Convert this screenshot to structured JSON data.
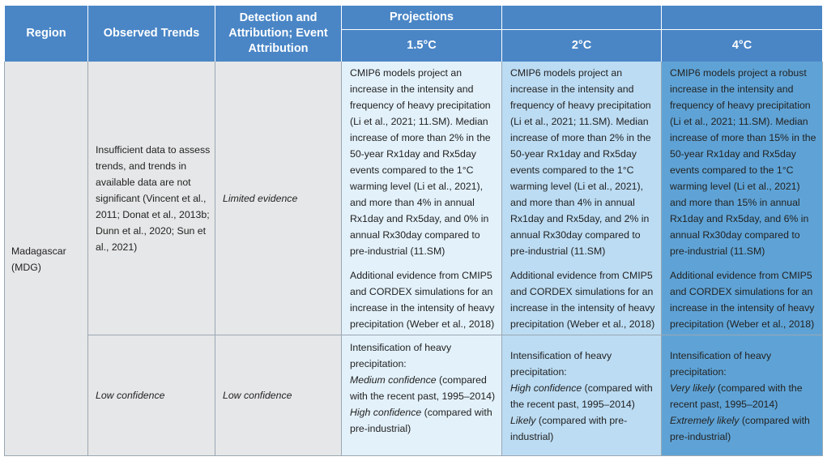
{
  "header": {
    "region": "Region",
    "observed": "Observed Trends",
    "detection": "Detection and Attribution; Event Attribution",
    "projections": "Projections",
    "t15": "1.5°C",
    "t2": "2°C",
    "t4": "4°C"
  },
  "region": "Madagascar (MDG)",
  "row1": {
    "observed": "Insufficient data to assess trends, and trends in available data are not significant (Vincent et al., 2011; Donat et al., 2013b; Dunn et al., 2020; Sun et al., 2021)",
    "detection": "Limited evidence",
    "p15_a": "CMIP6 models project an increase in the intensity and frequency of heavy precipitation (Li et al., 2021; 11.SM). Median increase of more than 2% in the 50-year Rx1day and Rx5day events compared to the 1°C warming level (Li et al., 2021), and more than 4% in annual Rx1day and Rx5day, and 0% in annual Rx30day compared to pre-industrial (11.SM)",
    "p15_b": "Additional evidence from CMIP5 and CORDEX simulations for an increase in the intensity of heavy precipitation (Weber et al., 2018)",
    "p2_a": "CMIP6 models project an increase in the intensity and frequency of heavy precipitation (Li et al., 2021; 11.SM). Median increase of more than 2% in the 50-year Rx1day and Rx5day events compared to the 1°C warming level (Li et al., 2021), and more than 4% in annual Rx1day and Rx5day, and 2% in annual Rx30day compared to pre-industrial (11.SM)",
    "p2_b": "Additional evidence from CMIP5 and CORDEX simulations for an increase in the intensity of heavy precipitation (Weber et al., 2018)",
    "p4_a": "CMIP6 models project a robust increase in the intensity and frequency of heavy precipitation (Li et al., 2021; 11.SM). Median increase of more than 15% in the 50-year Rx1day and Rx5day events compared to the 1°C warming level (Li et al., 2021) and more than 15% in annual Rx1day and Rx5day, and 6% in annual Rx30day compared to pre-industrial (11.SM)",
    "p4_b": "Additional evidence from CMIP5 and CORDEX simulations for an increase in the intensity of heavy precipitation (Weber et al., 2018)"
  },
  "row2": {
    "observed": "Low confidence",
    "detection": "Low confidence",
    "p15_l1": "Intensification of heavy precipitation:",
    "p15_c1": "Medium confidence",
    "p15_r1": " (compared with the recent past, 1995–2014)",
    "p15_c2": "High confidence",
    "p15_r2": " (compared with pre-industrial)",
    "p2_l1": "Intensification of heavy precipitation:",
    "p2_c1": "High confidence",
    "p2_r1": " (compared with the recent past, 1995–2014)",
    "p2_c2": "Likely",
    "p2_r2": " (compared with pre-industrial)",
    "p4_l1": "Intensification of heavy precipitation:",
    "p4_c1": "Very likely",
    "p4_r1": " (compared with the recent past, 1995–2014)",
    "p4_c2": "Extremely likely",
    "p4_r2": " (compared with pre-industrial)"
  },
  "colors": {
    "header": "#4a86c6",
    "left_bg": "#e6e7e8",
    "c15_bg": "#e3f1fa",
    "c2_bg": "#bcdcf3",
    "c4_bg": "#5fa3d6"
  }
}
